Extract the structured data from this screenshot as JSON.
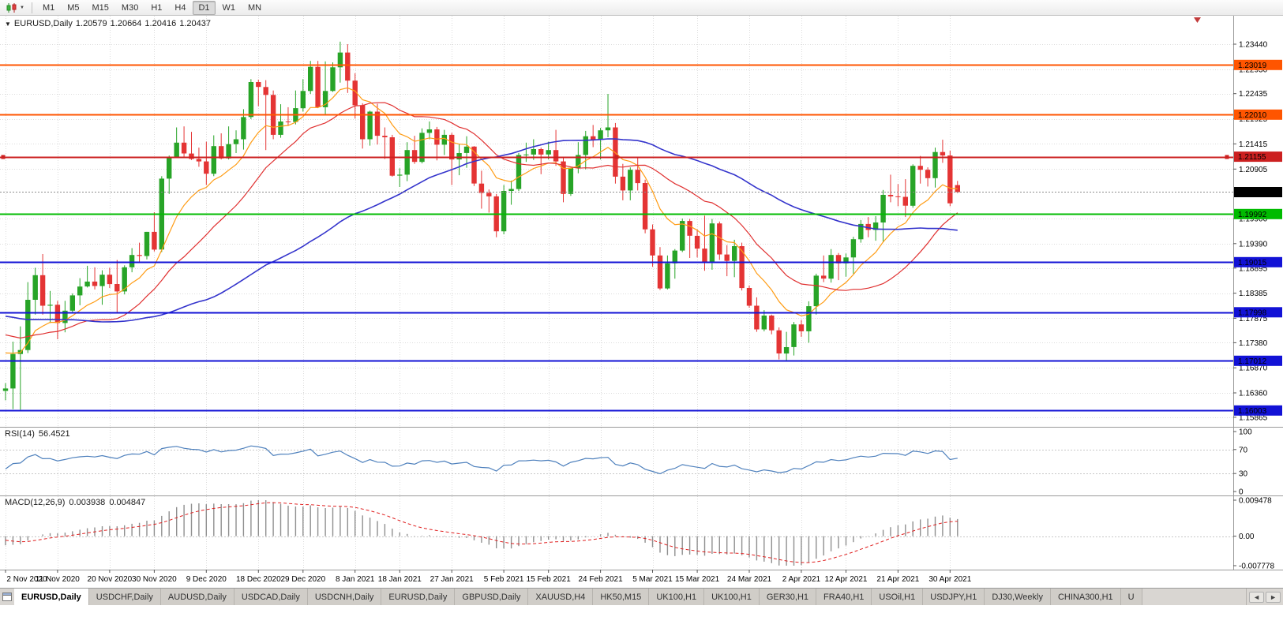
{
  "toolbar": {
    "timeframes": [
      "M1",
      "M5",
      "M15",
      "M30",
      "H1",
      "H4",
      "D1",
      "W1",
      "MN"
    ],
    "active_timeframe": "D1",
    "chart_type_icon": "candlestick-chart",
    "caret_icon": "▼"
  },
  "chart": {
    "dropdown_icon": "▼",
    "header": {
      "symbol": "EURUSD,Daily",
      "open": "1.20579",
      "high": "1.20664",
      "low": "1.20416",
      "close": "1.20437"
    }
  },
  "rsi": {
    "name": "RSI(14)",
    "value": "56.4521",
    "scale_labels": [
      "100",
      "70",
      "30",
      "0"
    ]
  },
  "macd": {
    "name": "MACD(12,26,9)",
    "value_main": "0.003938",
    "value_signal": "0.004847",
    "scale_labels": [
      "0.009478",
      "0.00",
      "-0.007778"
    ]
  },
  "tabs": {
    "scroll_left": "◄",
    "scroll_right": "►",
    "items": [
      {
        "label": "EURUSD,Daily",
        "active": true
      },
      {
        "label": "USDCHF,Daily",
        "active": false
      },
      {
        "label": "AUDUSD,Daily",
        "active": false
      },
      {
        "label": "USDCAD,Daily",
        "active": false
      },
      {
        "label": "USDCNH,Daily",
        "active": false
      },
      {
        "label": "EURUSD,Daily",
        "active": false
      },
      {
        "label": "GBPUSD,Daily",
        "active": false
      },
      {
        "label": "XAUUSD,H4",
        "active": false
      },
      {
        "label": "HK50,M15",
        "active": false
      },
      {
        "label": "UK100,H1",
        "active": false
      },
      {
        "label": "UK100,H1",
        "active": false
      },
      {
        "label": "GER30,H1",
        "active": false
      },
      {
        "label": "FRA40,H1",
        "active": false
      },
      {
        "label": "USOil,H1",
        "active": false
      },
      {
        "label": "USDJPY,H1",
        "active": false
      },
      {
        "label": "DJ30,Weekly",
        "active": false
      },
      {
        "label": "CHINA300,H1",
        "active": false
      },
      {
        "label": "U",
        "active": false
      }
    ]
  },
  "chart_data": {
    "type": "candlestick",
    "symbol": "EURUSD",
    "timeframe": "Daily",
    "price_axis": {
      "visible_ticks": [
        "1.23440",
        "1.22930",
        "1.22435",
        "1.21925",
        "1.21415",
        "1.20905",
        "1.19900",
        "1.19390",
        "1.18895",
        "1.18385",
        "1.17875",
        "1.17380",
        "1.16870",
        "1.16360",
        "1.15865"
      ],
      "current_price": 1.20437,
      "current_price_label": "1.20437",
      "range_top": 1.2392,
      "range_bottom": 1.1572
    },
    "horizontal_lines": [
      {
        "price": 1.23019,
        "label": "1.23019",
        "color": "#ff5500",
        "width": 2,
        "selected": false
      },
      {
        "price": 1.2201,
        "label": "1.22010",
        "color": "#ff5500",
        "width": 2,
        "selected": false
      },
      {
        "price": 1.21155,
        "label": "1.21155",
        "color": "#cc2020",
        "width": 2,
        "selected": true
      },
      {
        "price": 1.19992,
        "label": "1.19992",
        "color": "#00bb00",
        "width": 2,
        "selected": false
      },
      {
        "price": 1.19015,
        "label": "1.19015",
        "color": "#1212d6",
        "width": 2,
        "selected": false
      },
      {
        "price": 1.17998,
        "label": "1.17998",
        "color": "#1212d6",
        "width": 2,
        "selected": false
      },
      {
        "price": 1.17012,
        "label": "1.17012",
        "color": "#1212d6",
        "width": 2,
        "selected": false
      },
      {
        "price": 1.16003,
        "label": "1.16003",
        "color": "#1212d6",
        "width": 2,
        "selected": false
      }
    ],
    "time_ticks": [
      {
        "label": "2 Nov 2020",
        "index": 0
      },
      {
        "label": "11 Nov 2020",
        "index": 7
      },
      {
        "label": "20 Nov 2020",
        "index": 14
      },
      {
        "label": "30 Nov 2020",
        "index": 20
      },
      {
        "label": "9 Dec 2020",
        "index": 27
      },
      {
        "label": "18 Dec 2020",
        "index": 34
      },
      {
        "label": "29 Dec 2020",
        "index": 40
      },
      {
        "label": "8 Jan 2021",
        "index": 47
      },
      {
        "label": "18 Jan 2021",
        "index": 53
      },
      {
        "label": "27 Jan 2021",
        "index": 60
      },
      {
        "label": "5 Feb 2021",
        "index": 67
      },
      {
        "label": "15 Feb 2021",
        "index": 73
      },
      {
        "label": "24 Feb 2021",
        "index": 80
      },
      {
        "label": "5 Mar 2021",
        "index": 87
      },
      {
        "label": "15 Mar 2021",
        "index": 93
      },
      {
        "label": "24 Mar 2021",
        "index": 100
      },
      {
        "label": "2 Apr 2021",
        "index": 107
      },
      {
        "label": "12 Apr 2021",
        "index": 113
      },
      {
        "label": "21 Apr 2021",
        "index": 120
      },
      {
        "label": "30 Apr 2021",
        "index": 127
      }
    ],
    "candles_ohlc": [
      [
        1.164,
        1.1656,
        1.1621,
        1.1645
      ],
      [
        1.1645,
        1.174,
        1.1603,
        1.1715
      ],
      [
        1.1715,
        1.1771,
        1.1602,
        1.1723
      ],
      [
        1.1723,
        1.1861,
        1.1717,
        1.1825
      ],
      [
        1.1825,
        1.189,
        1.1795,
        1.1875
      ],
      [
        1.1875,
        1.1918,
        1.1795,
        1.1813
      ],
      [
        1.1813,
        1.1843,
        1.1778,
        1.1815
      ],
      [
        1.1815,
        1.1823,
        1.1745,
        1.1778
      ],
      [
        1.1778,
        1.1823,
        1.1759,
        1.1803
      ],
      [
        1.1803,
        1.1838,
        1.1799,
        1.1834
      ],
      [
        1.1834,
        1.1869,
        1.1814,
        1.1852
      ],
      [
        1.1852,
        1.1894,
        1.185,
        1.1862
      ],
      [
        1.1862,
        1.1891,
        1.1846,
        1.1853
      ],
      [
        1.1853,
        1.1885,
        1.1815,
        1.1876
      ],
      [
        1.1876,
        1.189,
        1.1849,
        1.1857
      ],
      [
        1.1857,
        1.1906,
        1.18,
        1.1842
      ],
      [
        1.1842,
        1.1895,
        1.1836,
        1.1891
      ],
      [
        1.1891,
        1.193,
        1.1881,
        1.1916
      ],
      [
        1.1916,
        1.1941,
        1.1902,
        1.1914
      ],
      [
        1.1914,
        1.1963,
        1.1907,
        1.1963
      ],
      [
        1.1963,
        1.2003,
        1.1923,
        1.1927
      ],
      [
        1.1927,
        1.2076,
        1.1922,
        1.2071
      ],
      [
        1.2071,
        1.2118,
        1.204,
        1.2114
      ],
      [
        1.2114,
        1.2175,
        1.2114,
        1.2144
      ],
      [
        1.2144,
        1.2177,
        1.2115,
        1.2122
      ],
      [
        1.2122,
        1.2166,
        1.2109,
        1.2111
      ],
      [
        1.2111,
        1.2134,
        1.2095,
        1.2106
      ],
      [
        1.2106,
        1.2146,
        1.2058,
        1.2081
      ],
      [
        1.2081,
        1.2159,
        1.2076,
        1.2137
      ],
      [
        1.2137,
        1.2163,
        1.211,
        1.2112
      ],
      [
        1.2112,
        1.2177,
        1.211,
        1.2141
      ],
      [
        1.2141,
        1.2169,
        1.2123,
        1.2151
      ],
      [
        1.2151,
        1.2212,
        1.213,
        1.2196
      ],
      [
        1.2196,
        1.2273,
        1.2192,
        1.2267
      ],
      [
        1.2267,
        1.2272,
        1.2218,
        1.2257
      ],
      [
        1.2257,
        1.2271,
        1.2129,
        1.2241
      ],
      [
        1.2241,
        1.225,
        1.2151,
        1.216
      ],
      [
        1.216,
        1.2222,
        1.2154,
        1.2187
      ],
      [
        1.2187,
        1.2216,
        1.2178,
        1.2186
      ],
      [
        1.2186,
        1.225,
        1.2181,
        1.2214
      ],
      [
        1.2214,
        1.2273,
        1.2207,
        1.2249
      ],
      [
        1.2249,
        1.231,
        1.2243,
        1.2298
      ],
      [
        1.2298,
        1.231,
        1.2214,
        1.2216
      ],
      [
        1.2216,
        1.2309,
        1.2199,
        1.2249
      ],
      [
        1.2249,
        1.2307,
        1.2247,
        1.2297
      ],
      [
        1.2297,
        1.2349,
        1.2266,
        1.2327
      ],
      [
        1.2327,
        1.2344,
        1.2245,
        1.227
      ],
      [
        1.227,
        1.2285,
        1.2193,
        1.222
      ],
      [
        1.222,
        1.2224,
        1.2132,
        1.2151
      ],
      [
        1.2151,
        1.2209,
        1.2138,
        1.2207
      ],
      [
        1.2207,
        1.2223,
        1.214,
        1.2158
      ],
      [
        1.2158,
        1.2175,
        1.2111,
        1.2155
      ],
      [
        1.2155,
        1.216,
        1.2075,
        1.2077
      ],
      [
        1.2077,
        1.2092,
        1.2054,
        1.2079
      ],
      [
        1.2079,
        1.2145,
        1.2066,
        1.2129
      ],
      [
        1.2129,
        1.2158,
        1.2101,
        1.2105
      ],
      [
        1.2105,
        1.2173,
        1.2102,
        1.2164
      ],
      [
        1.2164,
        1.2187,
        1.2151,
        1.2171
      ],
      [
        1.2171,
        1.2176,
        1.2108,
        1.214
      ],
      [
        1.214,
        1.217,
        1.2119,
        1.216
      ],
      [
        1.216,
        1.2164,
        1.2058,
        1.211
      ],
      [
        1.211,
        1.2142,
        1.2078,
        1.2123
      ],
      [
        1.2123,
        1.2157,
        1.2093,
        1.2136
      ],
      [
        1.2136,
        1.2137,
        1.2056,
        1.2061
      ],
      [
        1.2061,
        1.2087,
        1.201,
        1.2042
      ],
      [
        1.2042,
        1.2049,
        1.2002,
        1.2035
      ],
      [
        1.2035,
        1.204,
        1.1952,
        1.1964
      ],
      [
        1.1964,
        1.2058,
        1.1958,
        1.2046
      ],
      [
        1.2046,
        1.2067,
        1.2018,
        1.205
      ],
      [
        1.205,
        1.2123,
        1.2046,
        1.2119
      ],
      [
        1.2119,
        1.2144,
        1.2105,
        1.212
      ],
      [
        1.212,
        1.2151,
        1.2109,
        1.2131
      ],
      [
        1.2131,
        1.2134,
        1.208,
        1.212
      ],
      [
        1.212,
        1.2146,
        1.211,
        1.2129
      ],
      [
        1.2129,
        1.217,
        1.2097,
        1.2106
      ],
      [
        1.2106,
        1.2113,
        1.2023,
        1.204
      ],
      [
        1.204,
        1.2089,
        1.2036,
        1.2093
      ],
      [
        1.2093,
        1.2145,
        1.2082,
        1.2119
      ],
      [
        1.2119,
        1.2168,
        1.209,
        1.2157
      ],
      [
        1.2157,
        1.218,
        1.2135,
        1.215
      ],
      [
        1.215,
        1.2174,
        1.211,
        1.2169
      ],
      [
        1.2169,
        1.2243,
        1.2155,
        1.2175
      ],
      [
        1.2175,
        1.2184,
        1.2061,
        1.2075
      ],
      [
        1.2075,
        1.2101,
        1.2027,
        1.2047
      ],
      [
        1.2047,
        1.2094,
        1.2027,
        1.2089
      ],
      [
        1.2089,
        1.2113,
        1.2047,
        1.2062
      ],
      [
        1.2062,
        1.2069,
        1.196,
        1.1968
      ],
      [
        1.1968,
        1.1978,
        1.1892,
        1.1915
      ],
      [
        1.1915,
        1.1932,
        1.1845,
        1.1848
      ],
      [
        1.1848,
        1.1915,
        1.1846,
        1.1899
      ],
      [
        1.1899,
        1.1928,
        1.1868,
        1.1925
      ],
      [
        1.1925,
        1.199,
        1.1922,
        1.1985
      ],
      [
        1.1985,
        1.1989,
        1.191,
        1.1955
      ],
      [
        1.1955,
        1.1968,
        1.1911,
        1.1929
      ],
      [
        1.1929,
        1.1996,
        1.1884,
        1.1901
      ],
      [
        1.1901,
        1.1989,
        1.1886,
        1.198
      ],
      [
        1.198,
        1.1984,
        1.1906,
        1.1917
      ],
      [
        1.1917,
        1.1936,
        1.1873,
        1.1904
      ],
      [
        1.1904,
        1.1947,
        1.1871,
        1.1934
      ],
      [
        1.1934,
        1.1941,
        1.1844,
        1.1849
      ],
      [
        1.1849,
        1.1854,
        1.1809,
        1.1813
      ],
      [
        1.1813,
        1.183,
        1.176,
        1.1765
      ],
      [
        1.1765,
        1.1804,
        1.1761,
        1.1793
      ],
      [
        1.1793,
        1.1795,
        1.1755,
        1.1763
      ],
      [
        1.1763,
        1.1769,
        1.1704,
        1.1716
      ],
      [
        1.1716,
        1.176,
        1.1702,
        1.1729
      ],
      [
        1.1729,
        1.178,
        1.1712,
        1.1775
      ],
      [
        1.1775,
        1.1784,
        1.175,
        1.1761
      ],
      [
        1.1761,
        1.1822,
        1.1738,
        1.1812
      ],
      [
        1.1812,
        1.1878,
        1.1795,
        1.1874
      ],
      [
        1.1874,
        1.1915,
        1.1861,
        1.1868
      ],
      [
        1.1868,
        1.1928,
        1.186,
        1.1916
      ],
      [
        1.1916,
        1.192,
        1.1865,
        1.1899
      ],
      [
        1.1899,
        1.1919,
        1.1872,
        1.1911
      ],
      [
        1.1911,
        1.1953,
        1.1878,
        1.1948
      ],
      [
        1.1948,
        1.1987,
        1.1941,
        1.1979
      ],
      [
        1.1979,
        1.1993,
        1.1952,
        1.1967
      ],
      [
        1.1967,
        1.1995,
        1.1945,
        1.1982
      ],
      [
        1.1982,
        1.2048,
        1.1942,
        1.2038
      ],
      [
        1.2038,
        1.2079,
        1.2023,
        1.2035
      ],
      [
        1.2035,
        1.206,
        1.2015,
        1.2034
      ],
      [
        1.2034,
        1.207,
        1.1993,
        1.2016
      ],
      [
        1.2016,
        1.21,
        1.2012,
        1.2097
      ],
      [
        1.2097,
        1.2117,
        1.2061,
        1.2089
      ],
      [
        1.2089,
        1.2094,
        1.2055,
        1.2072
      ],
      [
        1.2072,
        1.2134,
        1.2053,
        1.2125
      ],
      [
        1.2125,
        1.215,
        1.2103,
        1.2118
      ],
      [
        1.2118,
        1.2128,
        1.2015,
        1.2021
      ],
      [
        1.20579,
        1.20664,
        1.20416,
        1.20437
      ]
    ],
    "warmup_closes_for_indicators": [
      1.178,
      1.1762,
      1.18,
      1.1866,
      1.1878,
      1.1737,
      1.1739,
      1.1788,
      1.1811,
      1.1842,
      1.184,
      1.187,
      1.1926,
      1.1859,
      1.1836,
      1.1799,
      1.1784,
      1.1832,
      1.1818,
      1.1905,
      1.1936,
      1.1935,
      1.1915,
      1.1854,
      1.1817,
      1.1845,
      1.1815,
      1.1776,
      1.18,
      1.1815,
      1.1874,
      1.1862,
      1.1847,
      1.1786,
      1.1792,
      1.1843,
      1.1866,
      1.1814,
      1.1687,
      1.1662,
      1.1632,
      1.1668,
      1.1724,
      1.1718,
      1.1713,
      1.1783,
      1.1786,
      1.176,
      1.1812,
      1.1773,
      1.1746,
      1.1745,
      1.1707,
      1.1724,
      1.1718,
      1.1771,
      1.1826,
      1.186,
      1.1861,
      1.1792,
      1.1748,
      1.1696,
      1.1679,
      1.1647
    ],
    "moving_averages": [
      {
        "name": "ma-fast",
        "type": "ema",
        "period": 10,
        "color": "#ff9c14",
        "width": 1.2
      },
      {
        "name": "ma-mid",
        "type": "sma",
        "period": 20,
        "color": "#e03030",
        "width": 1.2
      },
      {
        "name": "ma-slow",
        "type": "sma",
        "period": 55,
        "color": "#3434cc",
        "width": 1.6
      }
    ],
    "rsi": {
      "period": 14,
      "levels": [
        70,
        30
      ],
      "color": "#4f81bd",
      "scale_max": 100,
      "scale_min": 0
    },
    "macd": {
      "fast": 12,
      "slow": 26,
      "signal_period": 9,
      "scale_max": 0.009478,
      "scale_min": -0.007778,
      "histogram_color": "#8f8f8f",
      "signal_color": "#e02020"
    },
    "colors": {
      "candle_up": "#27a427",
      "candle_down": "#e43434",
      "grid": "#dcdcdc",
      "current_price_line": "#8c8c8c",
      "shift_marker": "#c23b3b"
    }
  }
}
